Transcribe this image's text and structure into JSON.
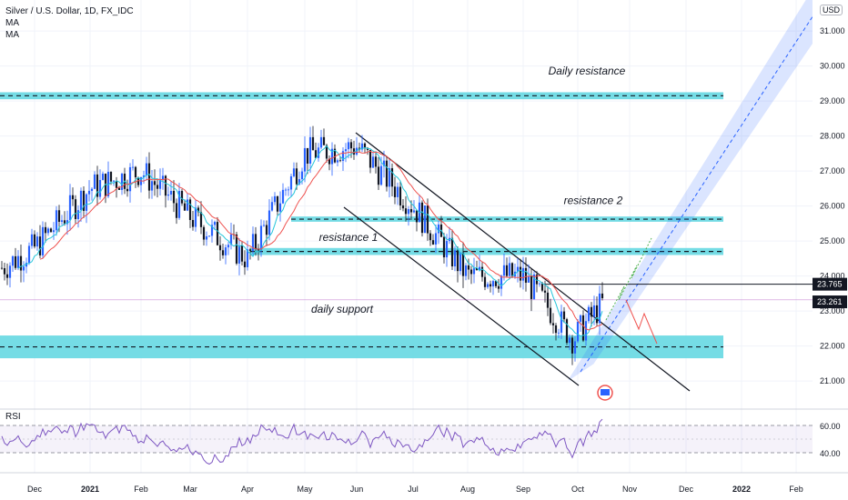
{
  "header": {
    "symbol": "Silver / U.S. Dollar, 1D, FX_IDC",
    "indicators": [
      "MA",
      "MA"
    ],
    "currency": "USD"
  },
  "rsi": {
    "label": "RSI",
    "ticks": [
      "60.00",
      "40.00"
    ]
  },
  "colors": {
    "up": "#2962ff",
    "down": "#131722",
    "zone": "#5dd6e0",
    "channel": "#2962ff",
    "ma_fast": "#26c6da",
    "ma_slow": "#ef5350",
    "rsi": "#7e57c2"
  },
  "chart_data": {
    "type": "candlestick",
    "title": "Silver / U.S. Dollar, 1D, FX_IDC",
    "y_axis_ticks": [
      31.0,
      30.0,
      29.0,
      28.0,
      27.0,
      26.0,
      25.0,
      24.0,
      23.0,
      22.0,
      21.0
    ],
    "ylim": [
      20.7,
      32.2
    ],
    "x_axis_labels": [
      "Dec",
      "2021",
      "Feb",
      "Mar",
      "Apr",
      "May",
      "Jun",
      "Jul",
      "Aug",
      "Sep",
      "Oct",
      "Nov",
      "Dec",
      "2022",
      "Feb"
    ],
    "price_labels": [
      {
        "value": 23.765,
        "text": "23.765",
        "color": "#131722"
      },
      {
        "value": 23.261,
        "text": "23.261",
        "color": "#131722"
      }
    ],
    "zones": [
      {
        "name": "Daily resistance",
        "from": 29.05,
        "to": 29.25
      },
      {
        "name": "resistance 2",
        "from": 25.55,
        "to": 25.7
      },
      {
        "name": "resistance 1",
        "from": 24.6,
        "to": 24.8
      },
      {
        "name": "daily support",
        "from": 21.65,
        "to": 22.3
      }
    ],
    "annotations": [
      "Daily resistance",
      "resistance 2",
      "resistance 1",
      "daily support"
    ],
    "trend_price_path": [
      {
        "month": "Nov",
        "price": 24.2
      },
      {
        "month": "Dec",
        "price": 24.8
      },
      {
        "month": "2021",
        "price": 26.5
      },
      {
        "month": "Feb",
        "price": 27.0
      },
      {
        "month": "Mar",
        "price": 25.7
      },
      {
        "month": "Apr",
        "price": 24.5
      },
      {
        "month": "May",
        "price": 27.5
      },
      {
        "month": "Jun",
        "price": 27.7
      },
      {
        "month": "Jul",
        "price": 26.0
      },
      {
        "month": "Aug",
        "price": 24.0
      },
      {
        "month": "Sep",
        "price": 24.0
      },
      {
        "month": "Oct",
        "price": 22.2
      },
      {
        "month": "Oct+",
        "price": 23.3
      }
    ]
  }
}
